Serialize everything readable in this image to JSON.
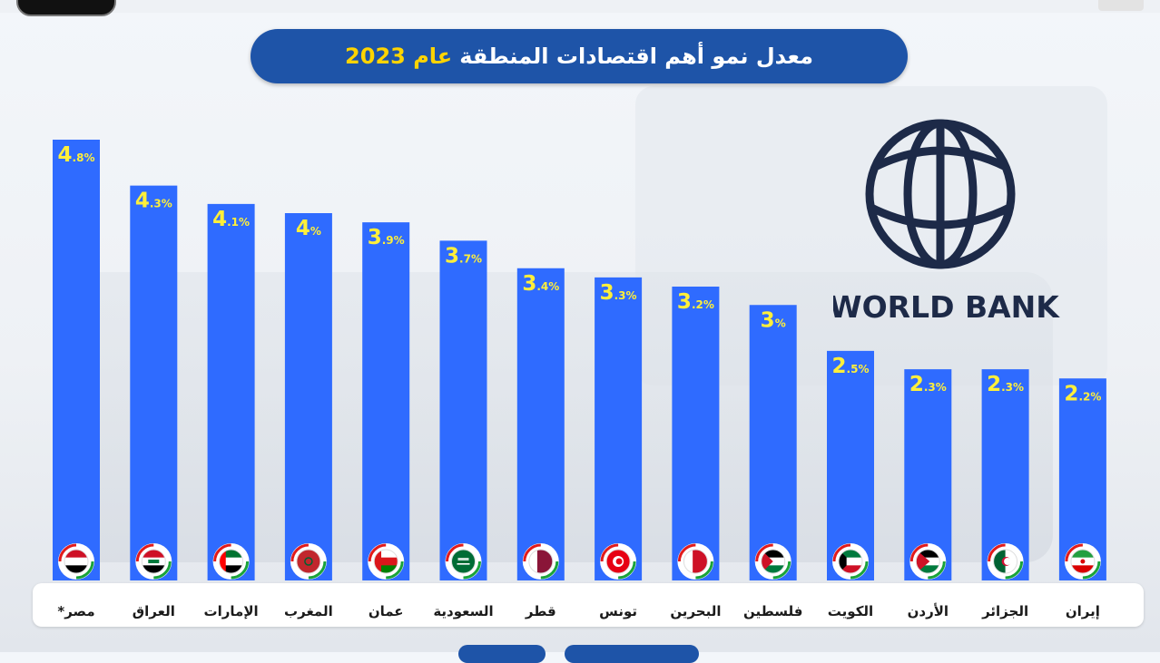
{
  "title": {
    "main": "معدل نمو أهم اقتصادات المنطقة",
    "accent": "عام 2023"
  },
  "logo": {
    "text": "WORLD BANK",
    "icon": "globe-icon"
  },
  "colors": {
    "bar": "#2f6bff",
    "title_bg": "#1e54a8",
    "label_yellow": "#ffef3a",
    "accent_yellow": "#ffd400",
    "logo_navy": "#1d2a48"
  },
  "chart_data": {
    "type": "bar",
    "categories": [
      "مصر*",
      "العراق",
      "الإمارات",
      "المغرب",
      "عمان",
      "السعودية",
      "قطر",
      "تونس",
      "البحرين",
      "فلسطين",
      "الكويت",
      "الأردن",
      "الجزائر",
      "إيران"
    ],
    "values": [
      4.8,
      4.3,
      4.1,
      4,
      3.9,
      3.7,
      3.4,
      3.3,
      3.2,
      3,
      2.5,
      2.3,
      2.3,
      2.2
    ],
    "value_labels": [
      {
        "int": "4",
        "rest": ".8%"
      },
      {
        "int": "4",
        "rest": ".3%"
      },
      {
        "int": "4",
        "rest": ".1%"
      },
      {
        "int": "4",
        "rest": "%"
      },
      {
        "int": "3",
        "rest": ".9%"
      },
      {
        "int": "3",
        "rest": ".7%"
      },
      {
        "int": "3",
        "rest": ".4%"
      },
      {
        "int": "3",
        "rest": ".3%"
      },
      {
        "int": "3",
        "rest": ".2%"
      },
      {
        "int": "3",
        "rest": "%"
      },
      {
        "int": "2",
        "rest": ".5%"
      },
      {
        "int": "2",
        "rest": ".3%"
      },
      {
        "int": "2",
        "rest": ".3%"
      },
      {
        "int": "2",
        "rest": ".2%"
      }
    ],
    "flags": [
      "egypt-flag-icon",
      "iraq-flag-icon",
      "uae-flag-icon",
      "morocco-flag-icon",
      "oman-flag-icon",
      "saudi-flag-icon",
      "qatar-flag-icon",
      "tunisia-flag-icon",
      "bahrain-flag-icon",
      "palestine-flag-icon",
      "kuwait-flag-icon",
      "jordan-flag-icon",
      "algeria-flag-icon",
      "iran-flag-icon"
    ],
    "title": "معدل نمو أهم اقتصادات المنطقة عام 2023",
    "xlabel": "",
    "ylabel": "",
    "grid": false,
    "legend": "none"
  }
}
